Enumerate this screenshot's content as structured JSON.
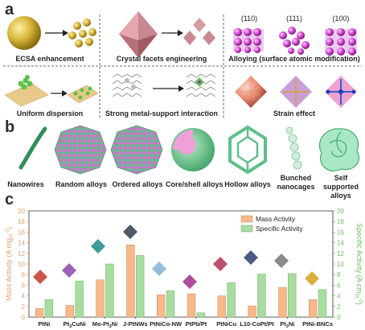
{
  "panel_a": {
    "label": "a",
    "captions": {
      "ecsa": "ECSA enhancement",
      "facets": "Crystal facets engineering",
      "alloying": "Alloying (surface atomic modification)",
      "dispersion": "Uniform dispersion",
      "msi": "Strong metal-support interaction",
      "strain": "Strain effect"
    },
    "facet_labels": [
      "(110)",
      "(111)",
      "(100)"
    ]
  },
  "panel_b": {
    "label": "b",
    "items": [
      "Nanowires",
      "Random alloys",
      "Ordered alloys",
      "Core/shell alloys",
      "Hollow alloys",
      "Bunched nanocages",
      "Self supported alloys"
    ]
  },
  "panel_c": {
    "label": "c"
  },
  "chart_data": {
    "type": "bar",
    "categories": [
      "PtNi",
      "Pt3CuNi",
      "Mo-Pt3Ni",
      "J-PtNWs",
      "PtNiCo-NW",
      "PtPb/Pt",
      "PtNiCu",
      "L10-CoPt/Pt",
      "Pt3Ni",
      "PtNi-BNCs"
    ],
    "category_labels": [
      {
        "base": "PtNi",
        "sub": "",
        "rest": ""
      },
      {
        "base": "Pt",
        "sub": "3",
        "rest": "CuNi"
      },
      {
        "base": "Mo-Pt",
        "sub": "3",
        "rest": "Ni"
      },
      {
        "base": "J-PtNWs",
        "sub": "",
        "rest": ""
      },
      {
        "base": "PtNiCo-NW",
        "sub": "",
        "rest": ""
      },
      {
        "base": "PtPb/Pt",
        "sub": "",
        "rest": ""
      },
      {
        "base": "PtNiCu",
        "sub": "",
        "rest": ""
      },
      {
        "base": "L10-CoPt/Pt",
        "sub": "",
        "rest": ""
      },
      {
        "base": "Pt",
        "sub": "3",
        "rest": "Ni"
      },
      {
        "base": "PtNi-BNCs",
        "sub": "",
        "rest": ""
      }
    ],
    "series": [
      {
        "name": "Mass Activity",
        "axis": "left",
        "color": "#f7b98a",
        "values": [
          1.6,
          2.2,
          7.0,
          13.6,
          4.2,
          4.4,
          4.0,
          2.1,
          5.6,
          3.3
        ]
      },
      {
        "name": "Specific Activity",
        "axis": "right",
        "color": "#a8dca0",
        "values": [
          3.3,
          6.8,
          10.0,
          11.6,
          5.0,
          0.8,
          6.5,
          8.1,
          8.2,
          5.2
        ]
      }
    ],
    "ylabel_left": "Mass Activity (A mg",
    "ylabel_left_sup": "Pt",
    "ylabel_left_sup2": "-1",
    "ylabel_left_end": ")",
    "ylabel_right": "Specific Activity (A cm",
    "ylabel_right_sub": "Pt",
    "ylabel_right_sup": "-2",
    "ylabel_right_end": ")",
    "ylim_left": [
      0,
      20
    ],
    "ylim_right": [
      0,
      20
    ],
    "yticks_left": [
      0,
      2,
      4,
      6,
      8,
      10,
      12,
      14,
      16,
      18,
      20
    ],
    "yticks_right": [
      0,
      2,
      4,
      6,
      8,
      10,
      12,
      14,
      16,
      18,
      20
    ],
    "legend_position": "top-right",
    "left_axis_color": "#e8a070",
    "right_axis_color": "#6fbf5f"
  }
}
